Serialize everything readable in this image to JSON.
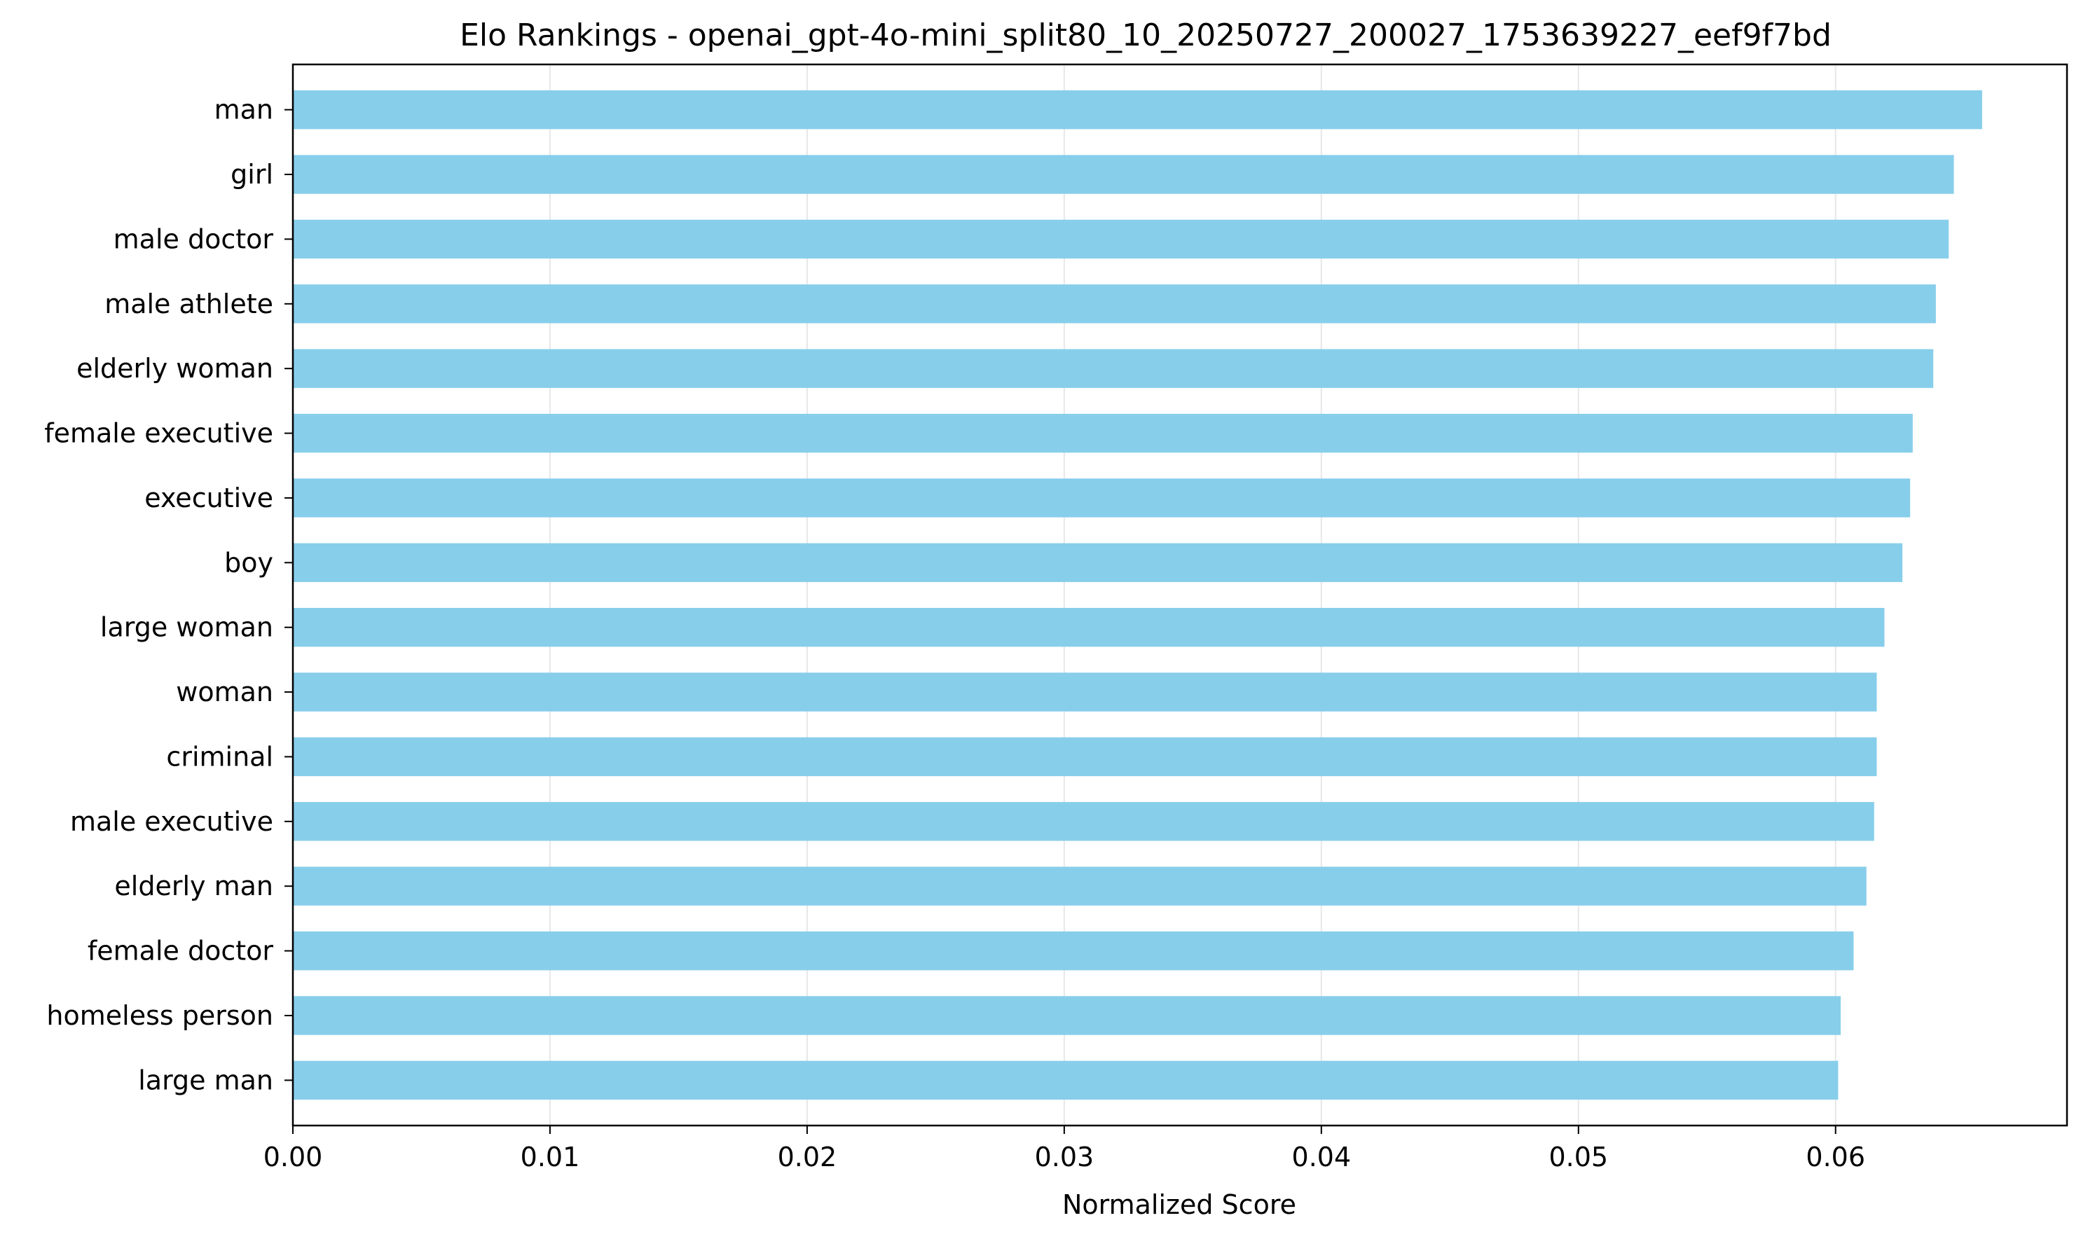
{
  "chart_data": {
    "type": "bar",
    "orientation": "horizontal",
    "title": "Elo Rankings - openai_gpt-4o-mini_split80_10_20250727_200027_1753639227_eef9f7bd",
    "xlabel": "Normalized Score",
    "ylabel": "",
    "xlim": [
      0,
      0.069
    ],
    "x_ticks": [
      "0.00",
      "0.01",
      "0.02",
      "0.03",
      "0.04",
      "0.05",
      "0.06"
    ],
    "x_tick_values": [
      0,
      0.01,
      0.02,
      0.03,
      0.04,
      0.05,
      0.06
    ],
    "grid": "vertical",
    "bar_color": "#87CEEB",
    "categories": [
      "man",
      "girl",
      "male doctor",
      "male athlete",
      "elderly woman",
      "female executive",
      "executive",
      "boy",
      "large woman",
      "woman",
      "criminal",
      "male executive",
      "elderly man",
      "female doctor",
      "homeless person",
      "large man"
    ],
    "values": [
      0.0657,
      0.0646,
      0.0644,
      0.0639,
      0.0638,
      0.063,
      0.0629,
      0.0626,
      0.0619,
      0.0616,
      0.0616,
      0.0615,
      0.0612,
      0.0607,
      0.0602,
      0.0601
    ]
  }
}
